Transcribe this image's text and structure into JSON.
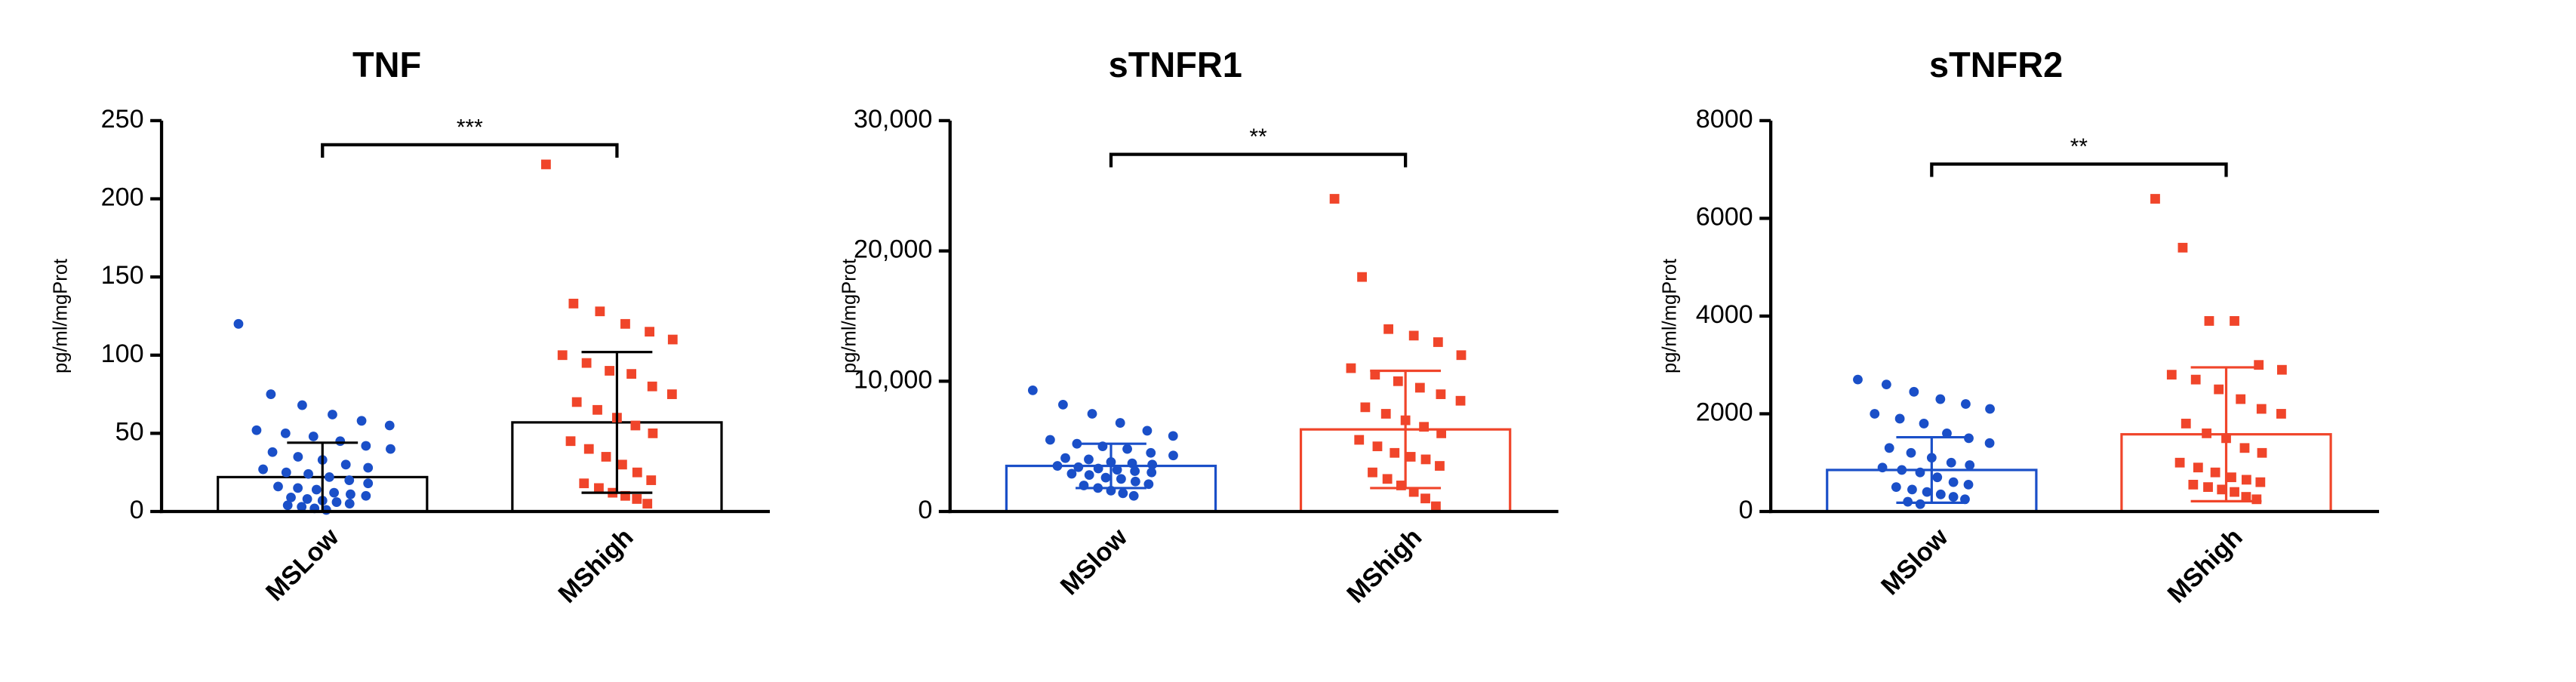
{
  "chart_data": [
    {
      "type": "bar",
      "title": "TNF",
      "y_label": "pg/ml/mgProt",
      "categories": [
        "MSLow",
        "MShigh"
      ],
      "values": [
        22,
        57
      ],
      "errors": [
        22,
        45
      ],
      "points": [
        [
          120,
          75,
          68,
          62,
          58,
          55,
          52,
          50,
          48,
          45,
          42,
          40,
          38,
          35,
          33,
          30,
          28,
          27,
          25,
          24,
          22,
          20,
          18,
          16,
          15,
          14,
          12,
          11,
          10,
          9,
          8,
          7,
          6,
          5,
          4,
          3,
          2,
          1
        ],
        [
          222,
          133,
          128,
          120,
          115,
          110,
          100,
          95,
          90,
          88,
          80,
          75,
          70,
          65,
          60,
          55,
          50,
          45,
          40,
          35,
          30,
          25,
          20,
          18,
          15,
          12,
          10,
          8,
          5
        ]
      ],
      "bar_colors": [
        "#000000",
        "#000000"
      ],
      "point_colors": [
        "#1a4fc8",
        "#f0452a"
      ],
      "markers": [
        "circle",
        "square"
      ],
      "significance": "***",
      "ylim": [
        0,
        250
      ],
      "yticks": [
        0,
        50,
        100,
        150,
        200,
        250
      ]
    },
    {
      "type": "bar",
      "title": "sTNFR1",
      "y_label": "pg/ml/mgProt",
      "categories": [
        "MSlow",
        "MShigh"
      ],
      "values": [
        3500,
        6300
      ],
      "errors": [
        1700,
        4500
      ],
      "points": [
        [
          9300,
          8200,
          7500,
          6800,
          6200,
          5800,
          5500,
          5200,
          5000,
          4800,
          4500,
          4300,
          4100,
          4000,
          3800,
          3700,
          3600,
          3500,
          3400,
          3300,
          3200,
          3100,
          3000,
          2900,
          2800,
          2600,
          2500,
          2300,
          2100,
          2000,
          1800,
          1600,
          1400,
          1200
        ],
        [
          24000,
          18000,
          14000,
          13500,
          13000,
          12000,
          11000,
          10500,
          10000,
          9500,
          9000,
          8500,
          8000,
          7500,
          7000,
          6500,
          6000,
          5500,
          5000,
          4500,
          4200,
          4000,
          3500,
          3000,
          2500,
          2000,
          1500,
          1000,
          400
        ]
      ],
      "bar_colors": [
        "#1a4fc8",
        "#f0452a"
      ],
      "point_colors": [
        "#1a4fc8",
        "#f0452a"
      ],
      "markers": [
        "circle",
        "square"
      ],
      "significance": "**",
      "ylim": [
        0,
        30000
      ],
      "yticks": [
        0,
        {
          "value": 10000,
          "label": "10,000"
        },
        {
          "value": 20000,
          "label": "20,000"
        },
        {
          "value": 30000,
          "label": "30,000"
        }
      ]
    },
    {
      "type": "bar",
      "title": "sTNFR2",
      "y_label": "pg/ml/mgProt",
      "categories": [
        "MSlow",
        "MShigh"
      ],
      "values": [
        850,
        1580
      ],
      "errors": [
        670,
        1370
      ],
      "points": [
        [
          2700,
          2600,
          2450,
          2300,
          2200,
          2100,
          2000,
          1900,
          1800,
          1600,
          1500,
          1400,
          1300,
          1200,
          1100,
          1000,
          950,
          900,
          850,
          800,
          700,
          600,
          550,
          500,
          450,
          400,
          350,
          300,
          250,
          200,
          150
        ],
        [
          6400,
          5400,
          3900,
          3900,
          3000,
          2900,
          2800,
          2700,
          2500,
          2300,
          2100,
          2000,
          1800,
          1600,
          1500,
          1300,
          1200,
          1000,
          900,
          800,
          700,
          650,
          600,
          550,
          500,
          450,
          400,
          300,
          250
        ]
      ],
      "bar_colors": [
        "#1a4fc8",
        "#f0452a"
      ],
      "point_colors": [
        "#1a4fc8",
        "#f0452a"
      ],
      "markers": [
        "circle",
        "square"
      ],
      "significance": "**",
      "ylim": [
        0,
        8000
      ],
      "yticks": [
        0,
        2000,
        4000,
        6000,
        8000
      ]
    }
  ]
}
